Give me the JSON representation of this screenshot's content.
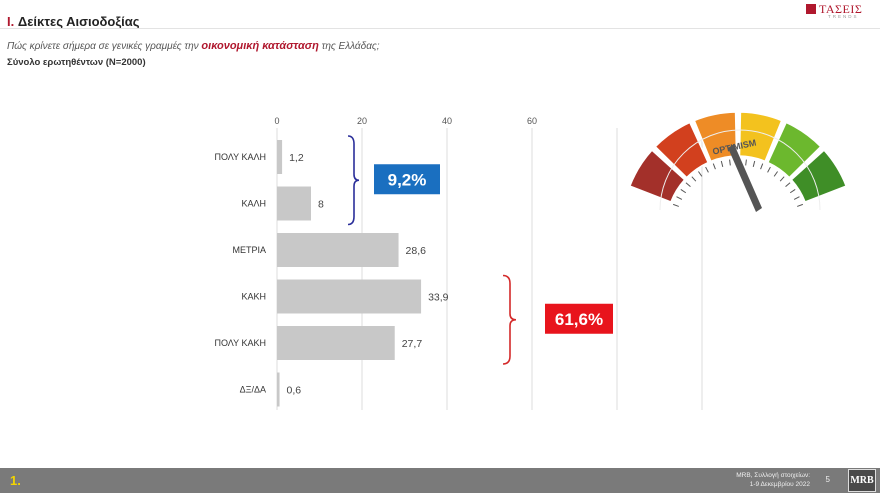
{
  "header": {
    "title_num": "I.",
    "title_text": "Δείκτες Αισιοδοξίας",
    "subtitle_pre": "Πώς κρίνετε σήμερα σε γενικές γραμμές την ",
    "subtitle_highlight": "οικονομική κατάσταση",
    "subtitle_post": " της Ελλάδας;",
    "sample": "Σύνολο ερωτηθέντων (N=2000)"
  },
  "logo": {
    "text": "ΤΑΣΕΙΣ",
    "sub": "TRENDS"
  },
  "gauge": {
    "label": "OPTIMISM"
  },
  "chart_data": {
    "type": "bar",
    "orientation": "horizontal",
    "categories": [
      "ΠΟΛΥ ΚΑΛΗ",
      "ΚΑΛΗ",
      "ΜΕΤΡΙΑ",
      "ΚΑΚΗ",
      "ΠΟΛΥ ΚΑΚΗ",
      "ΔΞ/ΔΑ"
    ],
    "values": [
      1.2,
      8,
      28.6,
      33.9,
      27.7,
      0.6
    ],
    "value_labels": [
      "1,2",
      "8",
      "28,6",
      "33,9",
      "27,7",
      "0,6"
    ],
    "xticks": [
      0,
      20,
      40,
      60
    ],
    "xlim": [
      0,
      100
    ],
    "grid": true,
    "bar_color": "#c8c8c8",
    "annotations": [
      {
        "text": "9,2%",
        "groups": [
          "ΠΟΛΥ ΚΑΛΗ",
          "ΚΑΛΗ"
        ],
        "color": "#1a6fc0",
        "bracket_color": "#2b2f9a"
      },
      {
        "text": "61,6%",
        "groups": [
          "ΚΑΚΗ",
          "ΠΟΛΥ ΚΑΚΗ"
        ],
        "color": "#e8141c",
        "bracket_color": "#d42a2a"
      }
    ]
  },
  "footer": {
    "page": "1.",
    "source_line1": "MRB, Συλλογή στοιχείων:",
    "source_line2": "1-9 Δεκεμβρίου 2022",
    "page_number": "5",
    "mrb": "MRB"
  }
}
